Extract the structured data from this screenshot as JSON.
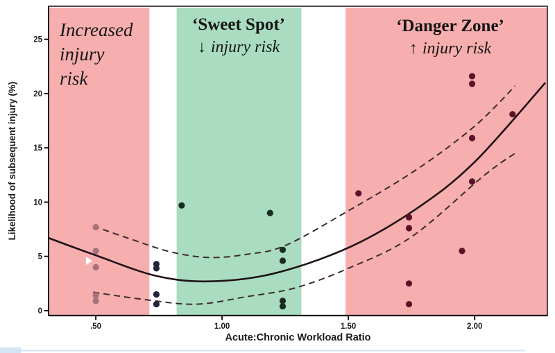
{
  "zone_labels": {
    "increased": {
      "line1": "Increased",
      "line2": "injury",
      "line3": "risk"
    },
    "sweet_spot": {
      "title": "‘Sweet Spot’",
      "arrow": "↓",
      "subtitle": "injury risk"
    },
    "danger_zone": {
      "title": "‘Danger Zone’",
      "arrow": "↑",
      "subtitle": "injury risk"
    }
  },
  "chart_data": {
    "type": "scatter",
    "title": "",
    "xlabel": "Acute:Chronic Workload Ratio",
    "ylabel": "Likelihood of subsequent injury (%)",
    "xlim": [
      0.313,
      2.288
    ],
    "ylim": [
      -0.45,
      28.05
    ],
    "x_ticks": [
      0.5,
      1.0,
      1.5,
      2.0
    ],
    "x_tick_labels": [
      ".50",
      "1.00",
      "1.50",
      "2.00"
    ],
    "y_ticks": [
      0,
      5,
      10,
      15,
      20,
      25
    ],
    "grid": false,
    "legend": "none",
    "zones": [
      {
        "name": "increased-injury-risk",
        "range": [
          0.313,
          0.712
        ],
        "color": "#f7aeae"
      },
      {
        "name": "sweet-spot",
        "range": [
          0.82,
          1.314
        ],
        "color": "#a9dcc0"
      },
      {
        "name": "danger-zone",
        "range": [
          1.489,
          2.288
        ],
        "color": "#f7aeae"
      }
    ],
    "points": [
      {
        "x": 0.5,
        "y": 7.7,
        "tone": "faded"
      },
      {
        "x": 0.5,
        "y": 5.5,
        "tone": "faded"
      },
      {
        "x": 0.5,
        "y": 4.0,
        "tone": "faded"
      },
      {
        "x": 0.5,
        "y": 1.4,
        "tone": "faded"
      },
      {
        "x": 0.5,
        "y": 0.9,
        "tone": "faded"
      },
      {
        "x": 0.74,
        "y": 4.3,
        "tone": "navy"
      },
      {
        "x": 0.74,
        "y": 3.9,
        "tone": "navy"
      },
      {
        "x": 0.74,
        "y": 1.5,
        "tone": "navy"
      },
      {
        "x": 0.74,
        "y": 0.6,
        "tone": "navy"
      },
      {
        "x": 0.84,
        "y": 9.7,
        "tone": "green"
      },
      {
        "x": 1.19,
        "y": 9.0,
        "tone": "green"
      },
      {
        "x": 1.24,
        "y": 5.6,
        "tone": "green"
      },
      {
        "x": 1.24,
        "y": 4.6,
        "tone": "green"
      },
      {
        "x": 1.24,
        "y": 0.9,
        "tone": "green"
      },
      {
        "x": 1.24,
        "y": 0.4,
        "tone": "green"
      },
      {
        "x": 1.54,
        "y": 10.8,
        "tone": "maroon"
      },
      {
        "x": 1.74,
        "y": 8.6,
        "tone": "maroon"
      },
      {
        "x": 1.74,
        "y": 7.6,
        "tone": "maroon"
      },
      {
        "x": 1.74,
        "y": 2.5,
        "tone": "maroon"
      },
      {
        "x": 1.74,
        "y": 0.6,
        "tone": "maroon"
      },
      {
        "x": 1.95,
        "y": 5.5,
        "tone": "maroon"
      },
      {
        "x": 1.99,
        "y": 21.6,
        "tone": "maroon"
      },
      {
        "x": 1.99,
        "y": 20.9,
        "tone": "maroon"
      },
      {
        "x": 1.99,
        "y": 15.9,
        "tone": "maroon"
      },
      {
        "x": 1.99,
        "y": 11.9,
        "tone": "maroon"
      },
      {
        "x": 2.15,
        "y": 18.1,
        "tone": "maroon"
      }
    ],
    "curves": {
      "fit": {
        "style": "solid",
        "color": "#1f1216",
        "points": [
          [
            0.313,
            6.7
          ],
          [
            0.5,
            5.1
          ],
          [
            0.74,
            3.2
          ],
          [
            0.95,
            2.7
          ],
          [
            1.2,
            3.4
          ],
          [
            1.5,
            5.8
          ],
          [
            1.77,
            9.4
          ],
          [
            2.0,
            13.7
          ],
          [
            2.28,
            21.0
          ]
        ]
      },
      "upper_ci": {
        "style": "dashed",
        "color": "#3c2b2f",
        "points": [
          [
            0.49,
            7.8
          ],
          [
            0.65,
            6.5
          ],
          [
            0.8,
            5.4
          ],
          [
            0.95,
            4.9
          ],
          [
            1.1,
            5.2
          ],
          [
            1.25,
            6.0
          ],
          [
            1.5,
            9.2
          ],
          [
            1.77,
            13.0
          ],
          [
            2.0,
            17.0
          ],
          [
            2.16,
            20.7
          ]
        ]
      },
      "lower_ci": {
        "style": "dashed",
        "color": "#3c2b2f",
        "points": [
          [
            0.49,
            1.7
          ],
          [
            0.7,
            1.0
          ],
          [
            0.9,
            0.6
          ],
          [
            1.1,
            1.3
          ],
          [
            1.29,
            2.1
          ],
          [
            1.5,
            3.9
          ],
          [
            1.75,
            6.8
          ],
          [
            2.04,
            12.5
          ],
          [
            2.16,
            14.5
          ]
        ]
      }
    },
    "point_colors": {
      "faded": "#a8727c",
      "navy": "#23233a",
      "green": "#182c23",
      "maroon": "#5c1226"
    },
    "frame_color": "#3d3434",
    "axis_color": "#161616",
    "artifact_blue": "#cfe3f4"
  }
}
